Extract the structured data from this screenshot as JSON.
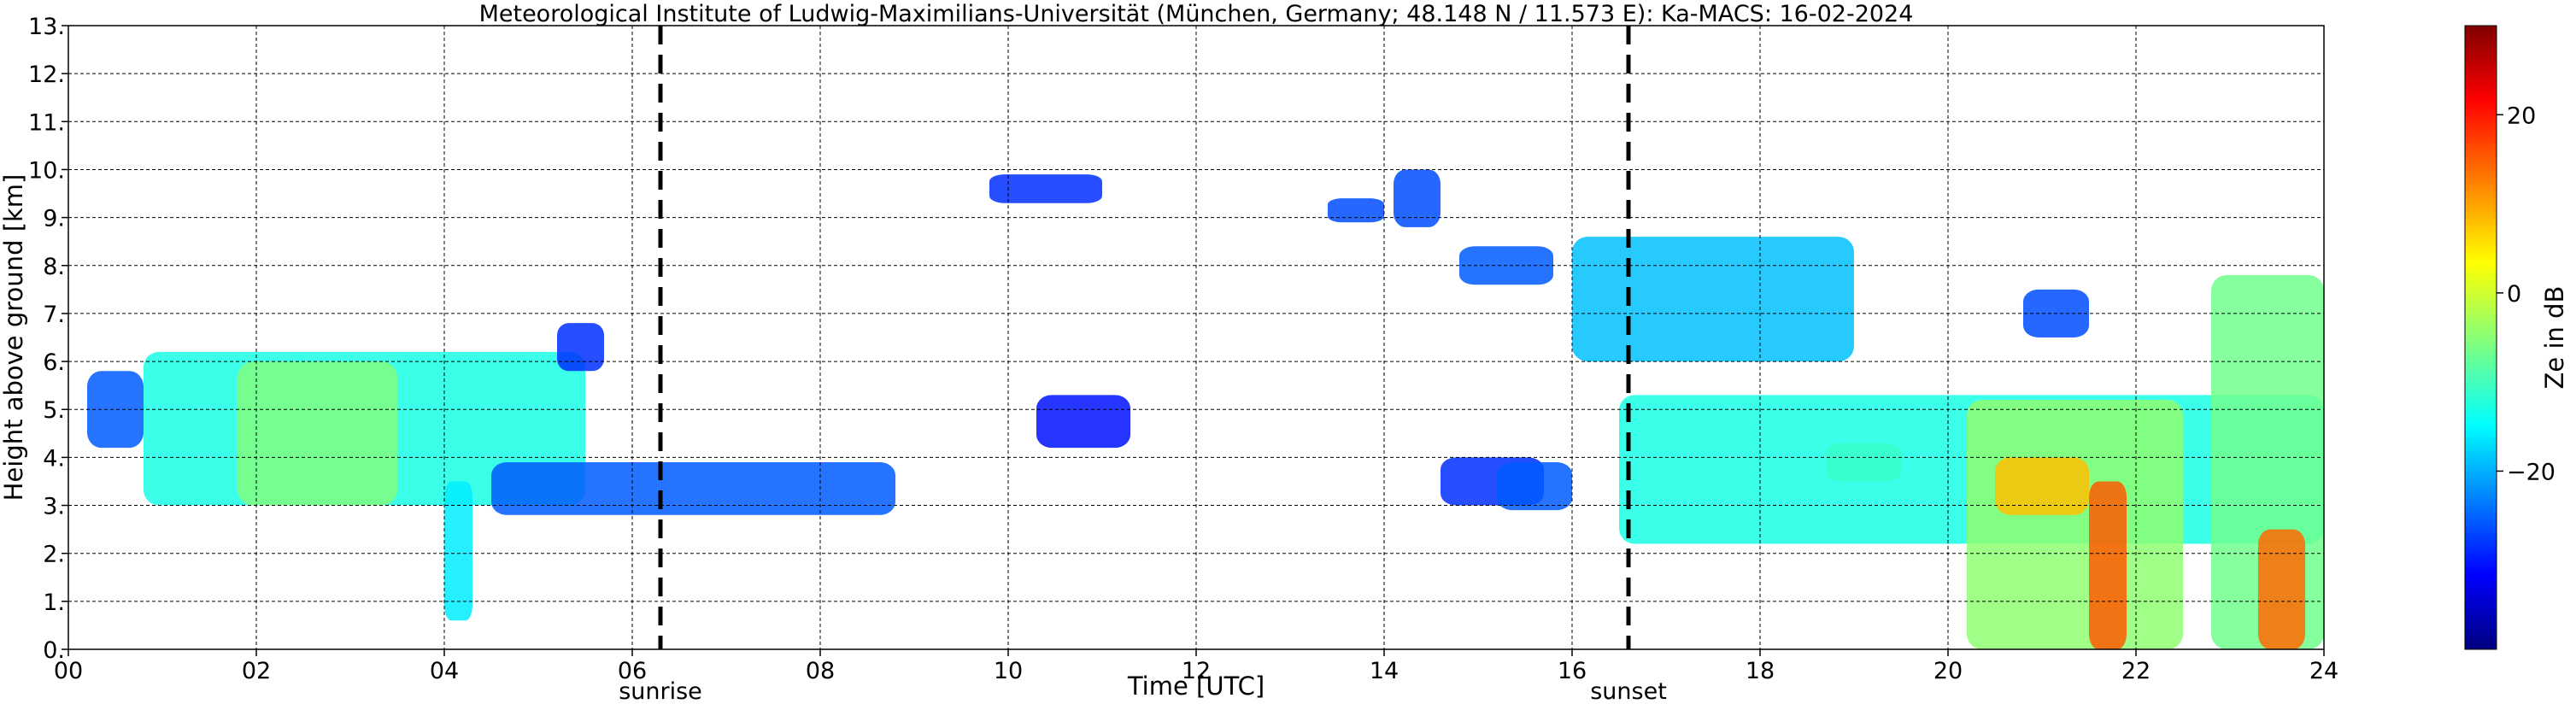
{
  "chart_data": {
    "type": "heatmap",
    "title": "Meteorological Institute of Ludwig-Maximilians-Universität (München, Germany; 48.148 N / 11.573 E):    Ka-MACS: 16-02-2024",
    "xlabel": "Time [UTC]",
    "ylabel": "Height above ground [km]",
    "xlim": [
      0,
      24
    ],
    "ylim": [
      0,
      13
    ],
    "x_ticks": [
      "00",
      "02",
      "04",
      "06",
      "08",
      "10",
      "12",
      "14",
      "16",
      "18",
      "20",
      "22",
      "24"
    ],
    "y_ticks": [
      "0.",
      "1.",
      "2.",
      "3.",
      "4.",
      "5.",
      "6.",
      "7.",
      "8.",
      "9.",
      "10.",
      "11.",
      "12.",
      "13."
    ],
    "grid": true,
    "colormap": "jet",
    "colorbar": {
      "label": "Ze in dB",
      "range": [
        -40,
        30
      ],
      "ticks": [
        "20",
        "0",
        "−20"
      ],
      "tick_values": [
        20,
        0,
        -20
      ]
    },
    "annotations": [
      {
        "text": "sunrise",
        "x": 6.3
      },
      {
        "text": "sunset",
        "x": 16.6
      }
    ],
    "echo_regions": [
      {
        "x": [
          0.2,
          0.8
        ],
        "y": [
          4.2,
          5.8
        ],
        "ze": -25
      },
      {
        "x": [
          0.8,
          5.5
        ],
        "y": [
          3.0,
          6.2
        ],
        "ze": -12
      },
      {
        "x": [
          1.8,
          3.5
        ],
        "y": [
          3.0,
          6.0
        ],
        "ze": -5
      },
      {
        "x": [
          4.0,
          4.3
        ],
        "y": [
          0.6,
          3.5
        ],
        "ze": -15
      },
      {
        "x": [
          4.5,
          8.8
        ],
        "y": [
          2.8,
          3.9
        ],
        "ze": -25
      },
      {
        "x": [
          5.2,
          5.7
        ],
        "y": [
          5.8,
          6.8
        ],
        "ze": -28
      },
      {
        "x": [
          9.8,
          11.0
        ],
        "y": [
          9.3,
          9.9
        ],
        "ze": -28
      },
      {
        "x": [
          10.3,
          11.3
        ],
        "y": [
          4.2,
          5.3
        ],
        "ze": -30
      },
      {
        "x": [
          13.4,
          14.0
        ],
        "y": [
          8.9,
          9.4
        ],
        "ze": -26
      },
      {
        "x": [
          14.1,
          14.6
        ],
        "y": [
          8.8,
          10.0
        ],
        "ze": -26
      },
      {
        "x": [
          14.8,
          15.8
        ],
        "y": [
          7.6,
          8.4
        ],
        "ze": -25
      },
      {
        "x": [
          14.6,
          15.7
        ],
        "y": [
          3.0,
          4.0
        ],
        "ze": -28
      },
      {
        "x": [
          15.2,
          16.0
        ],
        "y": [
          2.9,
          3.9
        ],
        "ze": -25
      },
      {
        "x": [
          16.0,
          19.0
        ],
        "y": [
          6.0,
          8.6
        ],
        "ze": -18
      },
      {
        "x": [
          16.5,
          24.0
        ],
        "y": [
          2.2,
          5.3
        ],
        "ze": -12
      },
      {
        "x": [
          20.2,
          22.5
        ],
        "y": [
          0.0,
          5.2
        ],
        "ze": -4
      },
      {
        "x": [
          20.5,
          21.5
        ],
        "y": [
          2.8,
          4.0
        ],
        "ze": 8
      },
      {
        "x": [
          21.5,
          21.9
        ],
        "y": [
          0.0,
          3.5
        ],
        "ze": 15
      },
      {
        "x": [
          22.8,
          24.0
        ],
        "y": [
          0.0,
          7.8
        ],
        "ze": -6
      },
      {
        "x": [
          23.3,
          23.8
        ],
        "y": [
          0.0,
          2.5
        ],
        "ze": 14
      },
      {
        "x": [
          20.8,
          21.5
        ],
        "y": [
          6.5,
          7.5
        ],
        "ze": -26
      },
      {
        "x": [
          18.7,
          19.5
        ],
        "y": [
          3.5,
          4.3
        ],
        "ze": -10
      }
    ]
  }
}
